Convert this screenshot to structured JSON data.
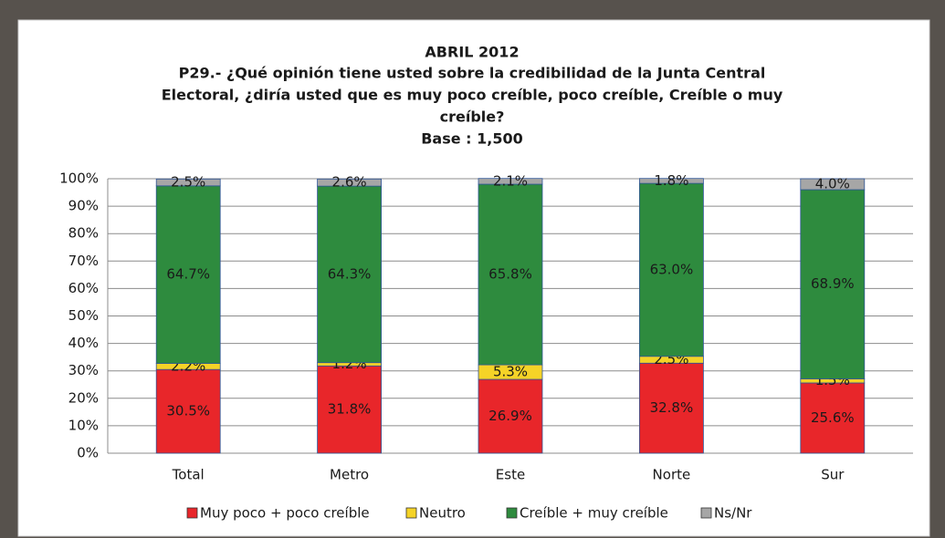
{
  "chart_data": {
    "type": "stacked-bar",
    "title": "ABRIL 2012",
    "subtitle": [
      "P29.- ¿Qué opinión tiene usted sobre la credibilidad de la Junta Central",
      "Electoral, ¿diría usted que es muy poco creíble, poco creíble, Creíble o muy",
      "creíble?"
    ],
    "base": "Base : 1,500",
    "categories": [
      "Total",
      "Metro",
      "Este",
      "Norte",
      "Sur"
    ],
    "series": [
      {
        "name": "Muy poco + poco creíble",
        "color": "#e8262a",
        "values": [
          30.5,
          31.8,
          26.9,
          32.8,
          25.6
        ],
        "value_labels": [
          "30.5%",
          "31.8%",
          "26.9%",
          "32.8%",
          "25.6%"
        ]
      },
      {
        "name": "Neutro",
        "color": "#f5d327",
        "values": [
          2.2,
          1.2,
          5.3,
          2.5,
          1.5
        ],
        "value_labels": [
          "2.2%",
          "1.2%",
          "5.3%",
          "2.5%",
          "1.5%"
        ]
      },
      {
        "name": "Creíble + muy creíble",
        "color": "#2e8b3e",
        "values": [
          64.7,
          64.3,
          65.8,
          63.0,
          68.9
        ],
        "value_labels": [
          "64.7%",
          "64.3%",
          "65.8%",
          "63.0%",
          "68.9%"
        ]
      },
      {
        "name": "Ns/Nr",
        "color": "#a6a6a6",
        "values": [
          2.5,
          2.6,
          2.1,
          1.8,
          4.0
        ],
        "value_labels": [
          "2.5%",
          "2.6%",
          "2.1%",
          "1.8%",
          "4.0%"
        ]
      }
    ],
    "ylim": [
      0,
      100
    ],
    "yticks": [
      {
        "value": 0,
        "label": "0%"
      },
      {
        "value": 10,
        "label": "10%"
      },
      {
        "value": 20,
        "label": "20%"
      },
      {
        "value": 30,
        "label": "30%"
      },
      {
        "value": 40,
        "label": "40%"
      },
      {
        "value": 50,
        "label": "50%"
      },
      {
        "value": 60,
        "label": "60%"
      },
      {
        "value": 70,
        "label": "70%"
      },
      {
        "value": 80,
        "label": "80%"
      },
      {
        "value": 90,
        "label": "90%"
      },
      {
        "value": 100,
        "label": "100%"
      }
    ],
    "grid": true,
    "legend": "bottom"
  }
}
